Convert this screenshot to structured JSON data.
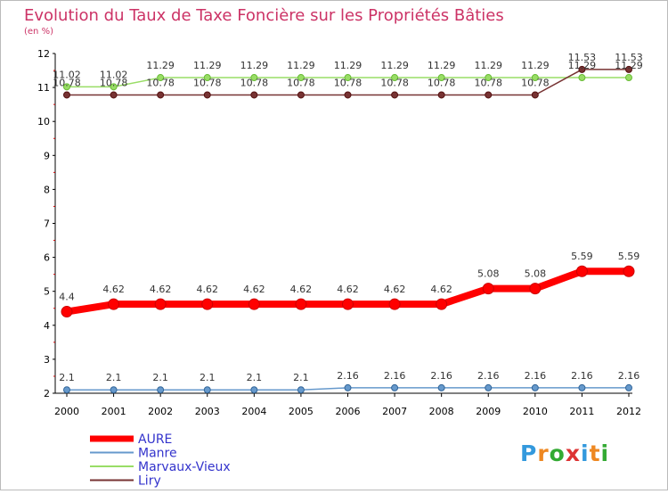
{
  "chart_data": {
    "type": "line",
    "title": "Evolution du Taux de Taxe Foncière sur les Propriétés Bâties",
    "subtitle": "(en %)",
    "xlabel": "",
    "ylabel": "",
    "ylim": [
      2,
      12
    ],
    "yticks": [
      "2",
      "3",
      "4",
      "5",
      "6",
      "7",
      "8",
      "9",
      "10",
      "11",
      "12"
    ],
    "categories": [
      "2000",
      "2001",
      "2002",
      "2003",
      "2004",
      "2005",
      "2006",
      "2007",
      "2008",
      "2009",
      "2010",
      "2011",
      "2012"
    ],
    "grid": false,
    "legend_position": "bottom-left",
    "series": [
      {
        "name": "AURE",
        "color": "#ff0000",
        "values": [
          4.4,
          4.62,
          4.62,
          4.62,
          4.62,
          4.62,
          4.62,
          4.62,
          4.62,
          5.08,
          5.08,
          5.59,
          5.59
        ]
      },
      {
        "name": "Manre",
        "color": "#6699cc",
        "values": [
          2.1,
          2.1,
          2.1,
          2.1,
          2.1,
          2.1,
          2.16,
          2.16,
          2.16,
          2.16,
          2.16,
          2.16,
          2.16
        ]
      },
      {
        "name": "Marvaux-Vieux",
        "color": "#99dd66",
        "values": [
          11.02,
          11.02,
          11.29,
          11.29,
          11.29,
          11.29,
          11.29,
          11.29,
          11.29,
          11.29,
          11.29,
          11.29,
          11.29
        ]
      },
      {
        "name": "Liry",
        "color": "#773333",
        "values": [
          10.78,
          10.78,
          10.78,
          10.78,
          10.78,
          10.78,
          10.78,
          10.78,
          10.78,
          10.78,
          10.78,
          11.53,
          11.53
        ]
      }
    ]
  },
  "logo": {
    "text": "Proxiti"
  },
  "colors": {
    "title": "#cc3366",
    "axis": "#000000",
    "legend_text": "#3333cc",
    "label": "#333333"
  }
}
